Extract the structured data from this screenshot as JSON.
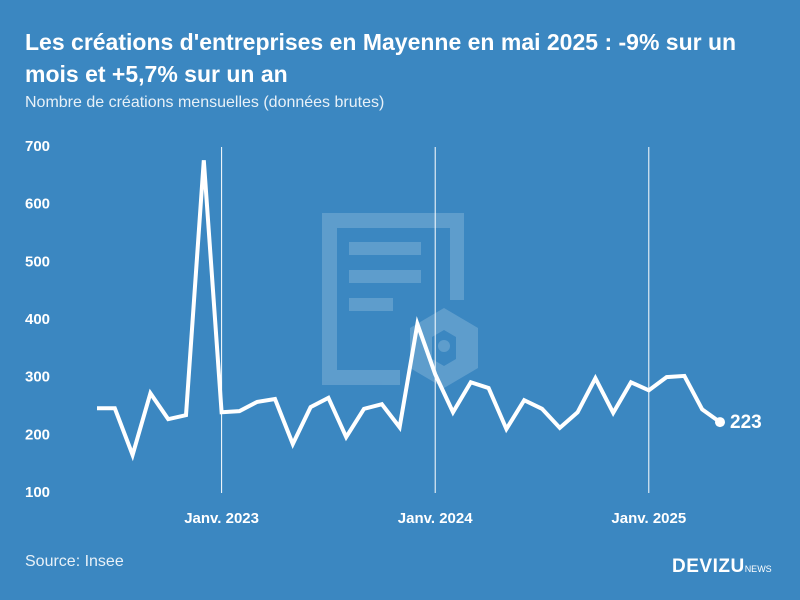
{
  "chart_data": {
    "type": "line",
    "title": "Les créations d'entreprises en Mayenne en mai 2025 : -9% sur un mois et +5,7% sur un an",
    "subtitle": "Nombre de créations mensuelles (données brutes)",
    "source": "Source: Insee",
    "brand": "DEVIZU",
    "brand_suffix": "NEWS",
    "categories": [
      null,
      null,
      null,
      null,
      null,
      null,
      null,
      "Janv. 2023",
      null,
      null,
      null,
      null,
      null,
      null,
      null,
      null,
      null,
      null,
      null,
      "Janv. 2024",
      null,
      null,
      null,
      null,
      null,
      null,
      null,
      null,
      null,
      null,
      null,
      "Janv. 2025",
      null,
      null,
      null,
      null
    ],
    "series": [
      {
        "name": "Créations",
        "color": "#ffffff",
        "values": [
          247,
          247,
          166,
          273,
          228,
          235,
          677,
          240,
          242,
          258,
          263,
          185,
          249,
          265,
          197,
          246,
          254,
          214,
          393,
          306,
          240,
          292,
          282,
          211,
          261,
          246,
          213,
          240,
          299,
          239,
          292,
          278,
          301,
          303,
          245,
          223
        ]
      }
    ],
    "ylim": [
      100,
      700
    ],
    "yticks": [
      100,
      200,
      300,
      400,
      500,
      600,
      700
    ],
    "grid": false,
    "category_grid": true,
    "last_value_label": true
  }
}
